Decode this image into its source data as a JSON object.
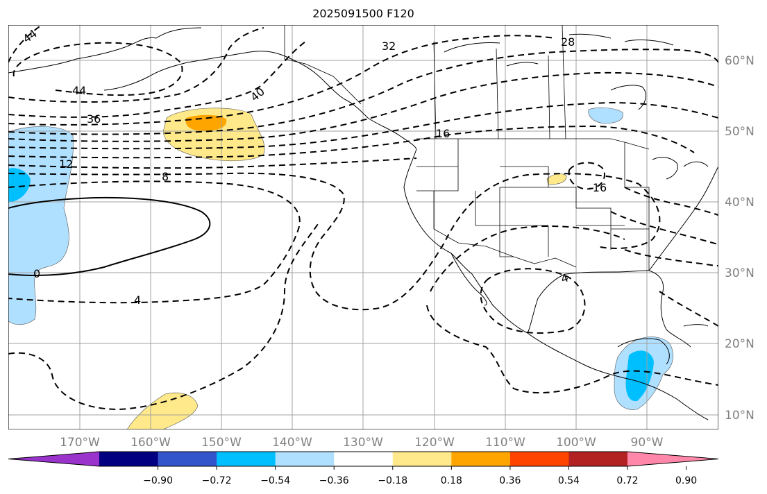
{
  "title": "2025091500 F120",
  "map": {
    "lon_labels": [
      "170°W",
      "160°W",
      "150°W",
      "140°W",
      "130°W",
      "120°W",
      "110°W",
      "100°W",
      "90°W"
    ],
    "lat_labels": [
      "60°N",
      "50°N",
      "40°N",
      "30°N",
      "20°N",
      "10°N"
    ],
    "grid_color": "#a0a0a0",
    "contour_labels": [
      "44",
      "44",
      "40",
      "36",
      "32",
      "28",
      "16",
      "12",
      "8",
      "4",
      "0",
      "-16",
      "4"
    ]
  },
  "colorbar": {
    "colors": [
      "#9933cc",
      "#000080",
      "#3355cc",
      "#00bfff",
      "#b0e0ff",
      "#ffffff",
      "#ffe98a",
      "#ffa500",
      "#ff4400",
      "#b22222",
      "#ff88aa"
    ],
    "tick_labels": [
      "−0.90",
      "−0.72",
      "−0.54",
      "−0.36",
      "−0.18",
      "0.18",
      "0.36",
      "0.54",
      "0.72",
      "0.90"
    ]
  },
  "shading_colors": {
    "light_blue": "#b0e0ff",
    "blue": "#00bfff",
    "light_yellow": "#ffe98a",
    "orange": "#ffa500"
  }
}
